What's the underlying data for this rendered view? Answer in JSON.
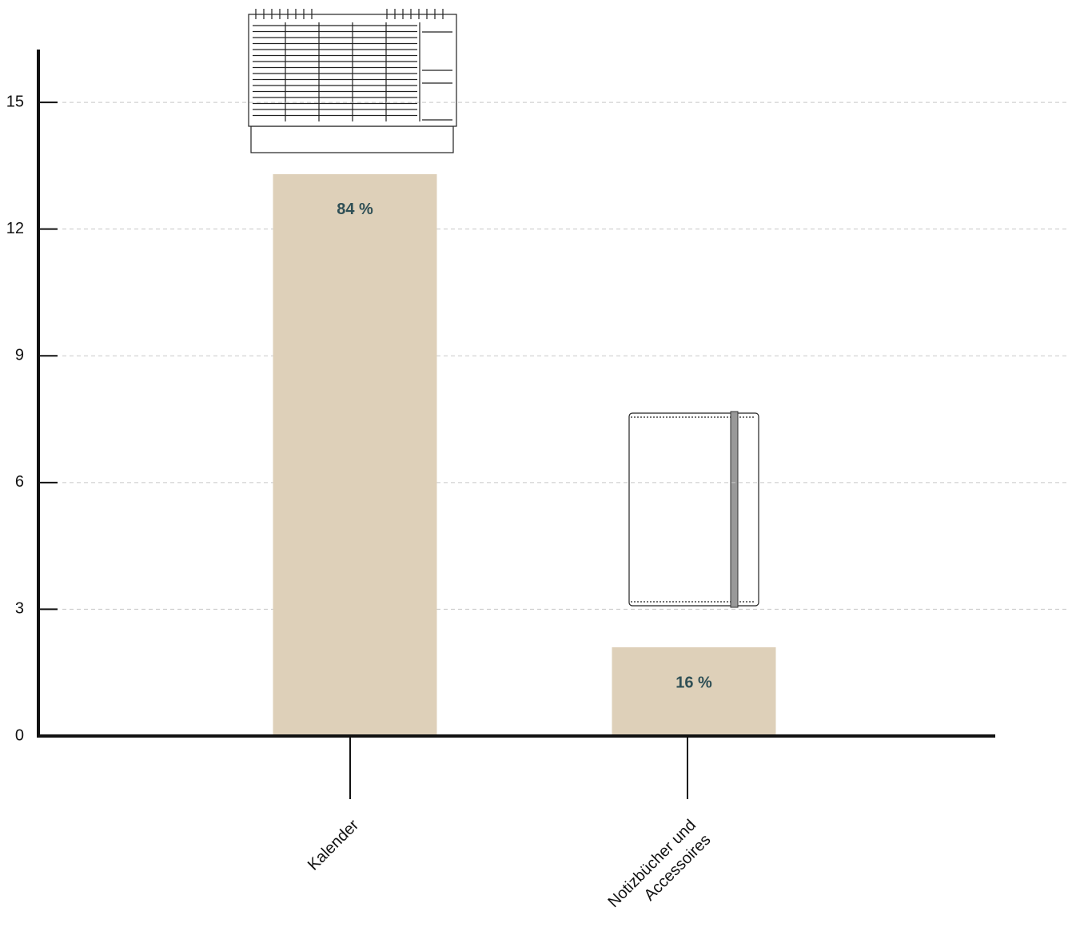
{
  "chart_data": {
    "type": "bar",
    "categories": [
      "Kalender",
      "Notizbücher und Accessoires"
    ],
    "values": [
      13.3,
      2.1
    ],
    "share_labels": [
      "84 %",
      "16 %"
    ],
    "color": "#ded0b9",
    "label_color": "#2f4f55",
    "ylim": [
      0,
      16.25
    ],
    "yticks": [
      0,
      3,
      6,
      9,
      12,
      15
    ],
    "grid": true
  }
}
